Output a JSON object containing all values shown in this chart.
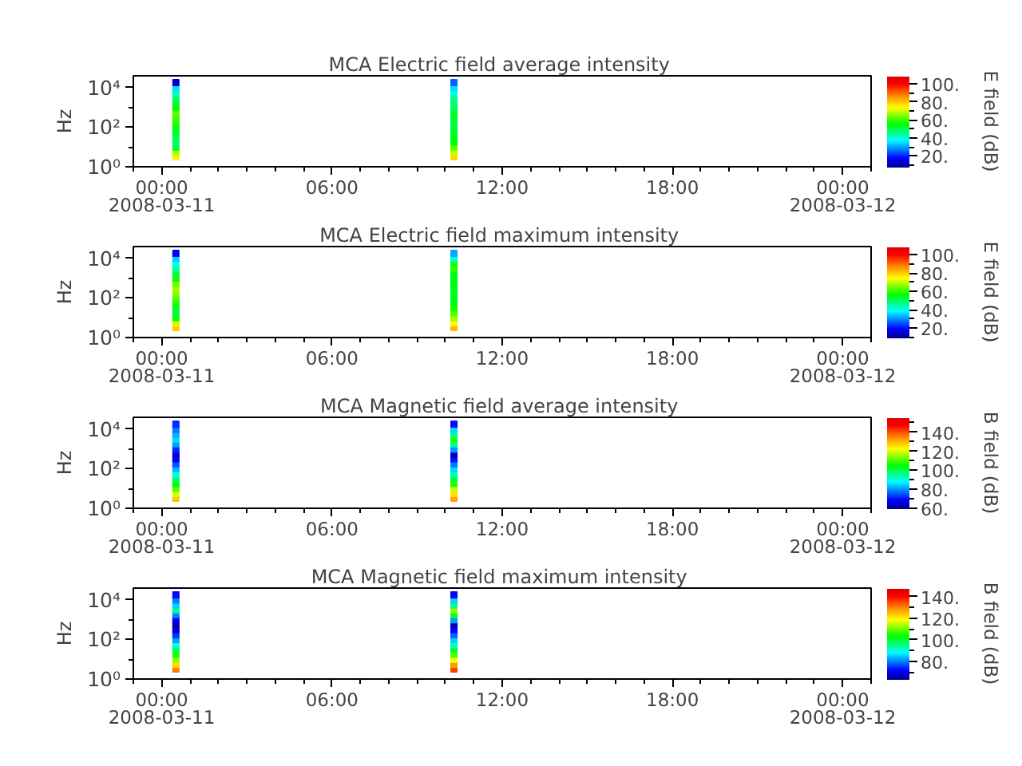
{
  "chart_data": [
    {
      "type": "scatter",
      "title": "MCA  Electric field average intensity",
      "ylabel": "Hz",
      "clabel": "E field (dB)",
      "marker": "square",
      "log": "y",
      "x": [
        "2008-03-11T00:30",
        "2008-03-11T00:30",
        "2008-03-11T00:30",
        "2008-03-11T00:30",
        "2008-03-11T00:30",
        "2008-03-11T00:30",
        "2008-03-11T00:30",
        "2008-03-11T00:30",
        "2008-03-11T00:30",
        "2008-03-11T00:30",
        "2008-03-11T00:30",
        "2008-03-11T00:30",
        "2008-03-11T00:30",
        "2008-03-11T00:30",
        "2008-03-11T00:30",
        "2008-03-11T00:30",
        "2008-03-11T10:18",
        "2008-03-11T10:18",
        "2008-03-11T10:18",
        "2008-03-11T10:18",
        "2008-03-11T10:18",
        "2008-03-11T10:18",
        "2008-03-11T10:18",
        "2008-03-11T10:18",
        "2008-03-11T10:18",
        "2008-03-11T10:18",
        "2008-03-11T10:18",
        "2008-03-11T10:18",
        "2008-03-11T10:18",
        "2008-03-11T10:18",
        "2008-03-11T10:18",
        "2008-03-11T10:18"
      ],
      "values": [
        3.2,
        5.6,
        10,
        18,
        32,
        56,
        100,
        180,
        320,
        560,
        1000,
        1800,
        3200,
        5600,
        10000,
        18000,
        3.2,
        5.6,
        10,
        18,
        32,
        56,
        100,
        180,
        320,
        560,
        1000,
        1800,
        3200,
        5600,
        10000,
        18000
      ],
      "cvalues": [
        75,
        68,
        52,
        48,
        50,
        52,
        55,
        58,
        60,
        62,
        56,
        52,
        48,
        42,
        35,
        12,
        78,
        70,
        62,
        56,
        54,
        52,
        52,
        50,
        52,
        52,
        50,
        48,
        45,
        40,
        35,
        25
      ],
      "xlim": [
        "2008-03-10T23:00",
        "2008-03-12T01:00"
      ],
      "xticks": [
        {
          "value": "2008-03-10T23:00",
          "label": null
        },
        {
          "value": "2008-03-11T00:00",
          "label": "00:00\n2008-03-11"
        },
        {
          "value": "2008-03-11T01:00",
          "label": null
        },
        {
          "value": "2008-03-11T02:00",
          "label": null
        },
        {
          "value": "2008-03-11T03:00",
          "label": null
        },
        {
          "value": "2008-03-11T04:00",
          "label": null
        },
        {
          "value": "2008-03-11T05:00",
          "label": null
        },
        {
          "value": "2008-03-11T06:00",
          "label": "06:00"
        },
        {
          "value": "2008-03-11T07:00",
          "label": null
        },
        {
          "value": "2008-03-11T08:00",
          "label": null
        },
        {
          "value": "2008-03-11T09:00",
          "label": null
        },
        {
          "value": "2008-03-11T10:00",
          "label": null
        },
        {
          "value": "2008-03-11T11:00",
          "label": null
        },
        {
          "value": "2008-03-11T12:00",
          "label": "12:00"
        },
        {
          "value": "2008-03-11T13:00",
          "label": null
        },
        {
          "value": "2008-03-11T14:00",
          "label": null
        },
        {
          "value": "2008-03-11T15:00",
          "label": null
        },
        {
          "value": "2008-03-11T16:00",
          "label": null
        },
        {
          "value": "2008-03-11T17:00",
          "label": null
        },
        {
          "value": "2008-03-11T18:00",
          "label": "18:00"
        },
        {
          "value": "2008-03-11T19:00",
          "label": null
        },
        {
          "value": "2008-03-11T20:00",
          "label": null
        },
        {
          "value": "2008-03-11T21:00",
          "label": null
        },
        {
          "value": "2008-03-11T22:00",
          "label": null
        },
        {
          "value": "2008-03-11T23:00",
          "label": null
        },
        {
          "value": "2008-03-12T00:00",
          "label": "00:00\n2008-03-12"
        },
        {
          "value": "2008-03-12T01:00",
          "label": null
        }
      ],
      "ylim": [
        1,
        40000
      ],
      "yticks": [
        {
          "value": 1,
          "label": "10⁰"
        },
        {
          "value": 10,
          "label": null
        },
        {
          "value": 100,
          "label": "10²"
        },
        {
          "value": 1000,
          "label": null
        },
        {
          "value": 10000,
          "label": "10⁴"
        }
      ],
      "clim": [
        7,
        108
      ],
      "cticks": [
        {
          "value": 10,
          "label": null
        },
        {
          "value": 20,
          "label": "20."
        },
        {
          "value": 30,
          "label": null
        },
        {
          "value": 40,
          "label": "40."
        },
        {
          "value": 50,
          "label": null
        },
        {
          "value": 60,
          "label": "60."
        },
        {
          "value": 70,
          "label": null
        },
        {
          "value": 80,
          "label": "80."
        },
        {
          "value": 90,
          "label": null
        },
        {
          "value": 100,
          "label": "100."
        }
      ]
    },
    {
      "type": "scatter",
      "title": "MCA  Electric field maximum intensity",
      "ylabel": "Hz",
      "clabel": "E field (dB)",
      "marker": "square",
      "log": "y",
      "x": [
        "2008-03-11T00:30",
        "2008-03-11T00:30",
        "2008-03-11T00:30",
        "2008-03-11T00:30",
        "2008-03-11T00:30",
        "2008-03-11T00:30",
        "2008-03-11T00:30",
        "2008-03-11T00:30",
        "2008-03-11T00:30",
        "2008-03-11T00:30",
        "2008-03-11T00:30",
        "2008-03-11T00:30",
        "2008-03-11T00:30",
        "2008-03-11T00:30",
        "2008-03-11T00:30",
        "2008-03-11T00:30",
        "2008-03-11T10:18",
        "2008-03-11T10:18",
        "2008-03-11T10:18",
        "2008-03-11T10:18",
        "2008-03-11T10:18",
        "2008-03-11T10:18",
        "2008-03-11T10:18",
        "2008-03-11T10:18",
        "2008-03-11T10:18",
        "2008-03-11T10:18",
        "2008-03-11T10:18",
        "2008-03-11T10:18",
        "2008-03-11T10:18",
        "2008-03-11T10:18",
        "2008-03-11T10:18",
        "2008-03-11T10:18"
      ],
      "values": [
        3.2,
        5.6,
        10,
        18,
        32,
        56,
        100,
        180,
        320,
        560,
        1000,
        1800,
        3200,
        5600,
        10000,
        18000,
        3.2,
        5.6,
        10,
        18,
        32,
        56,
        100,
        180,
        320,
        560,
        1000,
        1800,
        3200,
        5600,
        10000,
        18000
      ],
      "cvalues": [
        80,
        72,
        58,
        52,
        54,
        58,
        62,
        66,
        68,
        64,
        58,
        52,
        46,
        40,
        35,
        18,
        82,
        75,
        68,
        62,
        58,
        56,
        55,
        54,
        55,
        56,
        55,
        56,
        60,
        58,
        42,
        32
      ],
      "xlim": [
        "2008-03-10T23:00",
        "2008-03-12T01:00"
      ],
      "xticks": [
        {
          "value": "2008-03-10T23:00",
          "label": null
        },
        {
          "value": "2008-03-11T00:00",
          "label": "00:00\n2008-03-11"
        },
        {
          "value": "2008-03-11T01:00",
          "label": null
        },
        {
          "value": "2008-03-11T02:00",
          "label": null
        },
        {
          "value": "2008-03-11T03:00",
          "label": null
        },
        {
          "value": "2008-03-11T04:00",
          "label": null
        },
        {
          "value": "2008-03-11T05:00",
          "label": null
        },
        {
          "value": "2008-03-11T06:00",
          "label": "06:00"
        },
        {
          "value": "2008-03-11T07:00",
          "label": null
        },
        {
          "value": "2008-03-11T08:00",
          "label": null
        },
        {
          "value": "2008-03-11T09:00",
          "label": null
        },
        {
          "value": "2008-03-11T10:00",
          "label": null
        },
        {
          "value": "2008-03-11T11:00",
          "label": null
        },
        {
          "value": "2008-03-11T12:00",
          "label": "12:00"
        },
        {
          "value": "2008-03-11T13:00",
          "label": null
        },
        {
          "value": "2008-03-11T14:00",
          "label": null
        },
        {
          "value": "2008-03-11T15:00",
          "label": null
        },
        {
          "value": "2008-03-11T16:00",
          "label": null
        },
        {
          "value": "2008-03-11T17:00",
          "label": null
        },
        {
          "value": "2008-03-11T18:00",
          "label": "18:00"
        },
        {
          "value": "2008-03-11T19:00",
          "label": null
        },
        {
          "value": "2008-03-11T20:00",
          "label": null
        },
        {
          "value": "2008-03-11T21:00",
          "label": null
        },
        {
          "value": "2008-03-11T22:00",
          "label": null
        },
        {
          "value": "2008-03-11T23:00",
          "label": null
        },
        {
          "value": "2008-03-12T00:00",
          "label": "00:00\n2008-03-12"
        },
        {
          "value": "2008-03-12T01:00",
          "label": null
        }
      ],
      "ylim": [
        1,
        40000
      ],
      "yticks": [
        {
          "value": 1,
          "label": "10⁰"
        },
        {
          "value": 10,
          "label": null
        },
        {
          "value": 100,
          "label": "10²"
        },
        {
          "value": 1000,
          "label": null
        },
        {
          "value": 10000,
          "label": "10⁴"
        }
      ],
      "clim": [
        9,
        108
      ],
      "cticks": [
        {
          "value": 10,
          "label": null
        },
        {
          "value": 20,
          "label": "20."
        },
        {
          "value": 30,
          "label": null
        },
        {
          "value": 40,
          "label": "40."
        },
        {
          "value": 50,
          "label": null
        },
        {
          "value": 60,
          "label": "60."
        },
        {
          "value": 70,
          "label": null
        },
        {
          "value": 80,
          "label": "80."
        },
        {
          "value": 90,
          "label": null
        },
        {
          "value": 100,
          "label": "100."
        }
      ]
    },
    {
      "type": "scatter",
      "title": "MCA  Magnetic field average intensity",
      "ylabel": "Hz",
      "clabel": "B field (dB)",
      "marker": "square",
      "log": "y",
      "x": [
        "2008-03-11T00:30",
        "2008-03-11T00:30",
        "2008-03-11T00:30",
        "2008-03-11T00:30",
        "2008-03-11T00:30",
        "2008-03-11T00:30",
        "2008-03-11T00:30",
        "2008-03-11T00:30",
        "2008-03-11T00:30",
        "2008-03-11T00:30",
        "2008-03-11T00:30",
        "2008-03-11T00:30",
        "2008-03-11T00:30",
        "2008-03-11T00:30",
        "2008-03-11T00:30",
        "2008-03-11T00:30",
        "2008-03-11T10:18",
        "2008-03-11T10:18",
        "2008-03-11T10:18",
        "2008-03-11T10:18",
        "2008-03-11T10:18",
        "2008-03-11T10:18",
        "2008-03-11T10:18",
        "2008-03-11T10:18",
        "2008-03-11T10:18",
        "2008-03-11T10:18",
        "2008-03-11T10:18",
        "2008-03-11T10:18",
        "2008-03-11T10:18",
        "2008-03-11T10:18",
        "2008-03-11T10:18",
        "2008-03-11T10:18"
      ],
      "values": [
        3.2,
        5.6,
        10,
        18,
        32,
        56,
        100,
        180,
        320,
        560,
        1000,
        1800,
        3200,
        5600,
        10000,
        18000,
        3.2,
        5.6,
        10,
        18,
        32,
        56,
        100,
        180,
        320,
        560,
        1000,
        1800,
        3200,
        5600,
        10000,
        18000
      ],
      "cvalues": [
        128,
        120,
        112,
        105,
        98,
        90,
        82,
        75,
        68,
        64,
        72,
        80,
        85,
        82,
        78,
        72,
        132,
        125,
        118,
        108,
        100,
        92,
        85,
        78,
        70,
        62,
        80,
        95,
        108,
        95,
        85,
        70
      ],
      "xlim": [
        "2008-03-10T23:00",
        "2008-03-12T01:00"
      ],
      "xticks": [
        {
          "value": "2008-03-10T23:00",
          "label": null
        },
        {
          "value": "2008-03-11T00:00",
          "label": "00:00\n2008-03-11"
        },
        {
          "value": "2008-03-11T01:00",
          "label": null
        },
        {
          "value": "2008-03-11T02:00",
          "label": null
        },
        {
          "value": "2008-03-11T03:00",
          "label": null
        },
        {
          "value": "2008-03-11T04:00",
          "label": null
        },
        {
          "value": "2008-03-11T05:00",
          "label": null
        },
        {
          "value": "2008-03-11T06:00",
          "label": "06:00"
        },
        {
          "value": "2008-03-11T07:00",
          "label": null
        },
        {
          "value": "2008-03-11T08:00",
          "label": null
        },
        {
          "value": "2008-03-11T09:00",
          "label": null
        },
        {
          "value": "2008-03-11T10:00",
          "label": null
        },
        {
          "value": "2008-03-11T11:00",
          "label": null
        },
        {
          "value": "2008-03-11T12:00",
          "label": "12:00"
        },
        {
          "value": "2008-03-11T13:00",
          "label": null
        },
        {
          "value": "2008-03-11T14:00",
          "label": null
        },
        {
          "value": "2008-03-11T15:00",
          "label": null
        },
        {
          "value": "2008-03-11T16:00",
          "label": null
        },
        {
          "value": "2008-03-11T17:00",
          "label": null
        },
        {
          "value": "2008-03-11T18:00",
          "label": "18:00"
        },
        {
          "value": "2008-03-11T19:00",
          "label": null
        },
        {
          "value": "2008-03-11T20:00",
          "label": null
        },
        {
          "value": "2008-03-11T21:00",
          "label": null
        },
        {
          "value": "2008-03-11T22:00",
          "label": null
        },
        {
          "value": "2008-03-11T23:00",
          "label": null
        },
        {
          "value": "2008-03-12T00:00",
          "label": "00:00\n2008-03-12"
        },
        {
          "value": "2008-03-12T01:00",
          "label": null
        }
      ],
      "ylim": [
        1,
        40000
      ],
      "yticks": [
        {
          "value": 1,
          "label": "10⁰"
        },
        {
          "value": 10,
          "label": null
        },
        {
          "value": 100,
          "label": "10²"
        },
        {
          "value": 1000,
          "label": null
        },
        {
          "value": 10000,
          "label": "10⁴"
        }
      ],
      "clim": [
        59,
        155
      ],
      "cticks": [
        {
          "value": 60,
          "label": "60."
        },
        {
          "value": 70,
          "label": null
        },
        {
          "value": 80,
          "label": "80."
        },
        {
          "value": 90,
          "label": null
        },
        {
          "value": 100,
          "label": "100."
        },
        {
          "value": 110,
          "label": null
        },
        {
          "value": 120,
          "label": "120."
        },
        {
          "value": 130,
          "label": null
        },
        {
          "value": 140,
          "label": "140."
        },
        {
          "value": 150,
          "label": null
        }
      ]
    },
    {
      "type": "scatter",
      "title": "MCA  Magnetic field maximum intensity",
      "ylabel": "Hz",
      "clabel": "B field (dB)",
      "marker": "square",
      "log": "y",
      "x": [
        "2008-03-11T00:30",
        "2008-03-11T00:30",
        "2008-03-11T00:30",
        "2008-03-11T00:30",
        "2008-03-11T00:30",
        "2008-03-11T00:30",
        "2008-03-11T00:30",
        "2008-03-11T00:30",
        "2008-03-11T00:30",
        "2008-03-11T00:30",
        "2008-03-11T00:30",
        "2008-03-11T00:30",
        "2008-03-11T00:30",
        "2008-03-11T00:30",
        "2008-03-11T00:30",
        "2008-03-11T00:30",
        "2008-03-11T10:18",
        "2008-03-11T10:18",
        "2008-03-11T10:18",
        "2008-03-11T10:18",
        "2008-03-11T10:18",
        "2008-03-11T10:18",
        "2008-03-11T10:18",
        "2008-03-11T10:18",
        "2008-03-11T10:18",
        "2008-03-11T10:18",
        "2008-03-11T10:18",
        "2008-03-11T10:18",
        "2008-03-11T10:18",
        "2008-03-11T10:18",
        "2008-03-11T10:18",
        "2008-03-11T10:18"
      ],
      "values": [
        3.2,
        5.6,
        10,
        18,
        32,
        56,
        100,
        180,
        320,
        560,
        1000,
        1800,
        3200,
        5600,
        10000,
        18000,
        3.2,
        5.6,
        10,
        18,
        32,
        56,
        100,
        180,
        320,
        560,
        1000,
        1800,
        3200,
        5600,
        10000,
        18000
      ],
      "cvalues": [
        130,
        122,
        112,
        105,
        98,
        90,
        82,
        75,
        68,
        65,
        70,
        80,
        95,
        85,
        80,
        72,
        135,
        127,
        118,
        108,
        100,
        92,
        85,
        78,
        72,
        66,
        82,
        100,
        112,
        95,
        85,
        72
      ],
      "xlim": [
        "2008-03-10T23:00",
        "2008-03-12T01:00"
      ],
      "xticks": [
        {
          "value": "2008-03-10T23:00",
          "label": null
        },
        {
          "value": "2008-03-11T00:00",
          "label": "00:00\n2008-03-11"
        },
        {
          "value": "2008-03-11T01:00",
          "label": null
        },
        {
          "value": "2008-03-11T02:00",
          "label": null
        },
        {
          "value": "2008-03-11T03:00",
          "label": null
        },
        {
          "value": "2008-03-11T04:00",
          "label": null
        },
        {
          "value": "2008-03-11T05:00",
          "label": null
        },
        {
          "value": "2008-03-11T06:00",
          "label": "06:00"
        },
        {
          "value": "2008-03-11T07:00",
          "label": null
        },
        {
          "value": "2008-03-11T08:00",
          "label": null
        },
        {
          "value": "2008-03-11T09:00",
          "label": null
        },
        {
          "value": "2008-03-11T10:00",
          "label": null
        },
        {
          "value": "2008-03-11T11:00",
          "label": null
        },
        {
          "value": "2008-03-11T12:00",
          "label": "12:00"
        },
        {
          "value": "2008-03-11T13:00",
          "label": null
        },
        {
          "value": "2008-03-11T14:00",
          "label": null
        },
        {
          "value": "2008-03-11T15:00",
          "label": null
        },
        {
          "value": "2008-03-11T16:00",
          "label": null
        },
        {
          "value": "2008-03-11T17:00",
          "label": null
        },
        {
          "value": "2008-03-11T18:00",
          "label": "18:00"
        },
        {
          "value": "2008-03-11T19:00",
          "label": null
        },
        {
          "value": "2008-03-11T20:00",
          "label": null
        },
        {
          "value": "2008-03-11T21:00",
          "label": null
        },
        {
          "value": "2008-03-11T22:00",
          "label": null
        },
        {
          "value": "2008-03-11T23:00",
          "label": null
        },
        {
          "value": "2008-03-12T00:00",
          "label": "00:00\n2008-03-12"
        },
        {
          "value": "2008-03-12T01:00",
          "label": null
        }
      ],
      "ylim": [
        1,
        40000
      ],
      "yticks": [
        {
          "value": 1,
          "label": "10⁰"
        },
        {
          "value": 10,
          "label": null
        },
        {
          "value": 100,
          "label": "10²"
        },
        {
          "value": 1000,
          "label": null
        },
        {
          "value": 10000,
          "label": "10⁴"
        }
      ],
      "clim": [
        63,
        147
      ],
      "cticks": [
        {
          "value": 70,
          "label": null
        },
        {
          "value": 80,
          "label": "80."
        },
        {
          "value": 90,
          "label": null
        },
        {
          "value": 100,
          "label": "100."
        },
        {
          "value": 110,
          "label": null
        },
        {
          "value": 120,
          "label": "120."
        },
        {
          "value": 130,
          "label": null
        },
        {
          "value": 140,
          "label": "140."
        }
      ]
    }
  ]
}
